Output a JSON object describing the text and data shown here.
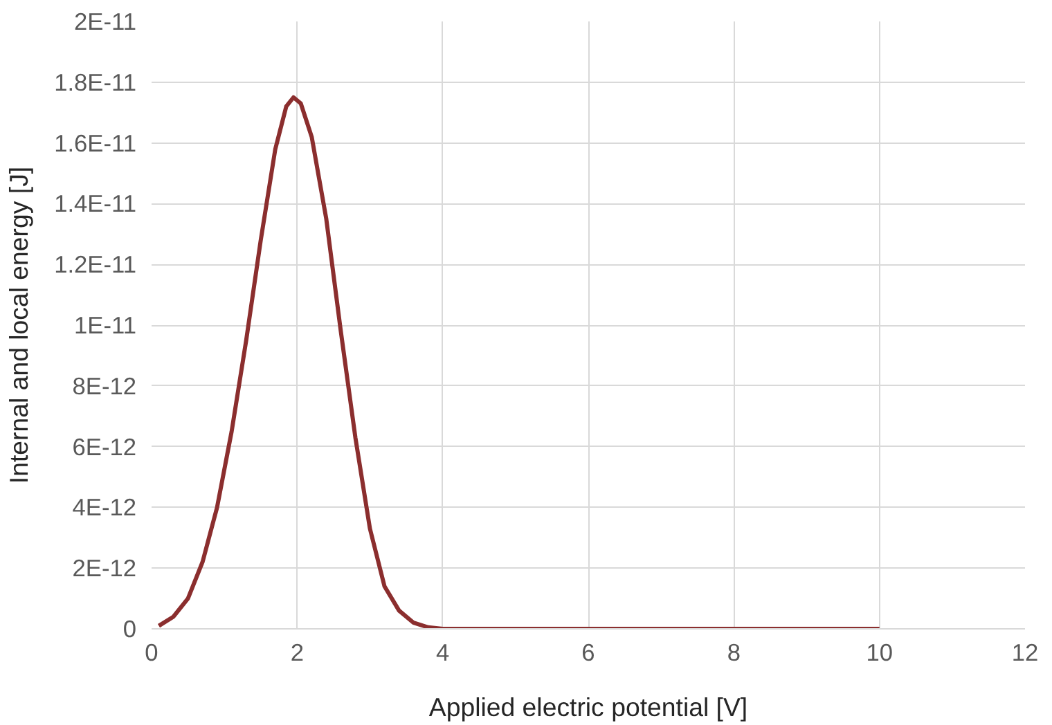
{
  "chart_data": {
    "type": "line",
    "xlabel": "Applied electric potential [V]",
    "ylabel": "Internal and local energy [J]",
    "xlim": [
      0,
      12
    ],
    "xticks": [
      0,
      2,
      4,
      6,
      8,
      10,
      12
    ],
    "ylim": [
      0,
      2e-11
    ],
    "yticks": [
      {
        "value": 0,
        "label": "0"
      },
      {
        "value": 2e-12,
        "label": "2E-12"
      },
      {
        "value": 4e-12,
        "label": "4E-12"
      },
      {
        "value": 6e-12,
        "label": "6E-12"
      },
      {
        "value": 8e-12,
        "label": "8E-12"
      },
      {
        "value": 1e-11,
        "label": "1E-11"
      },
      {
        "value": 1.2e-11,
        "label": "1.2E-11"
      },
      {
        "value": 1.4e-11,
        "label": "1.4E-11"
      },
      {
        "value": 1.6e-11,
        "label": "1.6E-11"
      },
      {
        "value": 1.8e-11,
        "label": "1.8E-11"
      },
      {
        "value": 2e-11,
        "label": "2E-11"
      }
    ],
    "grid": true,
    "marker": "none",
    "line_style": "solid",
    "series": [
      {
        "color": "#8b2e2e",
        "x": [
          0.1,
          0.3,
          0.5,
          0.7,
          0.9,
          1.1,
          1.3,
          1.5,
          1.7,
          1.85,
          1.95,
          2.05,
          2.2,
          2.4,
          2.6,
          2.8,
          3.0,
          3.2,
          3.4,
          3.6,
          3.8,
          4.0,
          6.0,
          8.0,
          10.0
        ],
        "values": [
          1e-13,
          4e-13,
          1e-12,
          2.2e-12,
          4e-12,
          6.5e-12,
          9.5e-12,
          1.28e-11,
          1.58e-11,
          1.72e-11,
          1.75e-11,
          1.73e-11,
          1.62e-11,
          1.35e-11,
          9.8e-12,
          6.3e-12,
          3.3e-12,
          1.4e-12,
          6e-13,
          2e-13,
          5e-14,
          0,
          0,
          0,
          0
        ]
      }
    ]
  }
}
